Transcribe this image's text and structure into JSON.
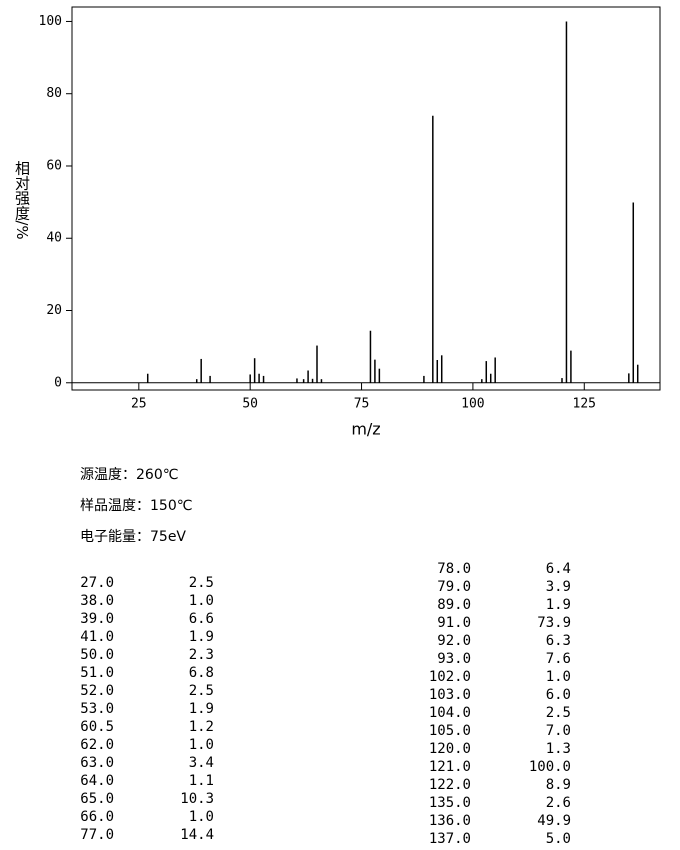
{
  "chart_data": {
    "type": "stem",
    "x_label": "m/z",
    "y_label": "相对强度/%",
    "x": [
      27,
      38,
      39,
      41,
      50,
      51,
      52,
      53,
      60.5,
      62,
      63,
      64,
      65,
      66,
      77,
      78,
      79,
      89,
      91,
      92,
      93,
      102,
      103,
      104,
      105,
      120,
      121,
      122,
      135,
      136,
      137
    ],
    "values": [
      2.5,
      1.0,
      6.6,
      1.9,
      2.3,
      6.8,
      2.5,
      1.9,
      1.2,
      1.0,
      3.4,
      1.1,
      10.3,
      1.0,
      14.4,
      6.4,
      3.9,
      1.9,
      73.9,
      6.3,
      7.6,
      1.0,
      6.0,
      2.5,
      7.0,
      1.3,
      100.0,
      8.9,
      2.6,
      49.9,
      5.0
    ],
    "color": "#000000",
    "xlim": [
      10,
      142
    ],
    "xticks": [
      25,
      50,
      75,
      100,
      125
    ],
    "ylim": [
      -2,
      104
    ],
    "yticks": [
      0,
      20,
      40,
      60,
      80,
      100
    ]
  },
  "conditions": [
    "源温度：260℃",
    "样品温度：150℃",
    "电子能量：75eV"
  ],
  "peak_table": {
    "left": [
      [
        "27.0",
        "2.5"
      ],
      [
        "38.0",
        "1.0"
      ],
      [
        "39.0",
        "6.6"
      ],
      [
        "41.0",
        "1.9"
      ],
      [
        "50.0",
        "2.3"
      ],
      [
        "51.0",
        "6.8"
      ],
      [
        "52.0",
        "2.5"
      ],
      [
        "53.0",
        "1.9"
      ],
      [
        "60.5",
        "1.2"
      ],
      [
        "62.0",
        "1.0"
      ],
      [
        "63.0",
        "3.4"
      ],
      [
        "64.0",
        "1.1"
      ],
      [
        "65.0",
        "10.3"
      ],
      [
        "66.0",
        "1.0"
      ],
      [
        "77.0",
        "14.4"
      ]
    ],
    "right": [
      [
        "78.0",
        "6.4"
      ],
      [
        "79.0",
        "3.9"
      ],
      [
        "89.0",
        "1.9"
      ],
      [
        "91.0",
        "73.9"
      ],
      [
        "92.0",
        "6.3"
      ],
      [
        "93.0",
        "7.6"
      ],
      [
        "102.0",
        "1.0"
      ],
      [
        "103.0",
        "6.0"
      ],
      [
        "104.0",
        "2.5"
      ],
      [
        "105.0",
        "7.0"
      ],
      [
        "120.0",
        "1.3"
      ],
      [
        "121.0",
        "100.0"
      ],
      [
        "122.0",
        "8.9"
      ],
      [
        "135.0",
        "2.6"
      ],
      [
        "136.0",
        "49.9"
      ],
      [
        "137.0",
        "5.0"
      ]
    ]
  }
}
